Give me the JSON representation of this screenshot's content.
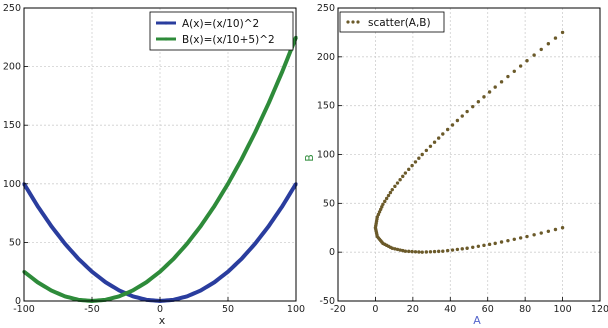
{
  "chart_data": [
    {
      "type": "line",
      "title": "",
      "xlabel": "x",
      "ylabel": "",
      "xlim": [
        -100,
        100
      ],
      "ylim": [
        0,
        250
      ],
      "xticks": [
        -100,
        -50,
        0,
        50,
        100
      ],
      "yticks": [
        0,
        50,
        100,
        150,
        200,
        250
      ],
      "grid": true,
      "legend": "top-right",
      "x": [
        -100,
        -90,
        -80,
        -70,
        -60,
        -50,
        -40,
        -30,
        -20,
        -10,
        0,
        10,
        20,
        30,
        40,
        50,
        60,
        70,
        80,
        90,
        100
      ],
      "series": [
        {
          "name": "A(x)=(x/10)^2",
          "color": "#2a3d9e",
          "values": [
            100,
            81,
            64,
            49,
            36,
            25,
            16,
            9,
            4,
            1,
            0,
            1,
            4,
            9,
            16,
            25,
            36,
            49,
            64,
            81,
            100
          ]
        },
        {
          "name": "B(x)=(x/10+5)^2",
          "color": "#2e8b3a",
          "values": [
            25,
            16,
            9,
            4,
            1,
            0,
            1,
            4,
            9,
            16,
            25,
            36,
            49,
            64,
            81,
            100,
            121,
            144,
            169,
            196,
            225
          ]
        }
      ]
    },
    {
      "type": "scatter",
      "title": "",
      "xlabel": "A",
      "ylabel": "B",
      "xlim": [
        -20,
        120
      ],
      "ylim": [
        -50,
        250
      ],
      "xticks": [
        -20,
        0,
        20,
        40,
        60,
        80,
        100,
        120
      ],
      "yticks": [
        -50,
        0,
        50,
        100,
        150,
        200,
        250
      ],
      "grid": true,
      "legend": "top-left",
      "series": [
        {
          "name": "scatter(A,B)",
          "color": "#6b5a2a",
          "x": [
            100,
            81,
            64,
            49,
            36,
            25,
            16,
            9,
            4,
            1,
            0,
            1,
            4,
            9,
            16,
            25,
            36,
            49,
            64,
            81,
            100
          ],
          "y": [
            25,
            16,
            9,
            4,
            1,
            0,
            1,
            4,
            9,
            16,
            25,
            36,
            49,
            64,
            81,
            100,
            121,
            144,
            169,
            196,
            225
          ]
        }
      ]
    }
  ]
}
